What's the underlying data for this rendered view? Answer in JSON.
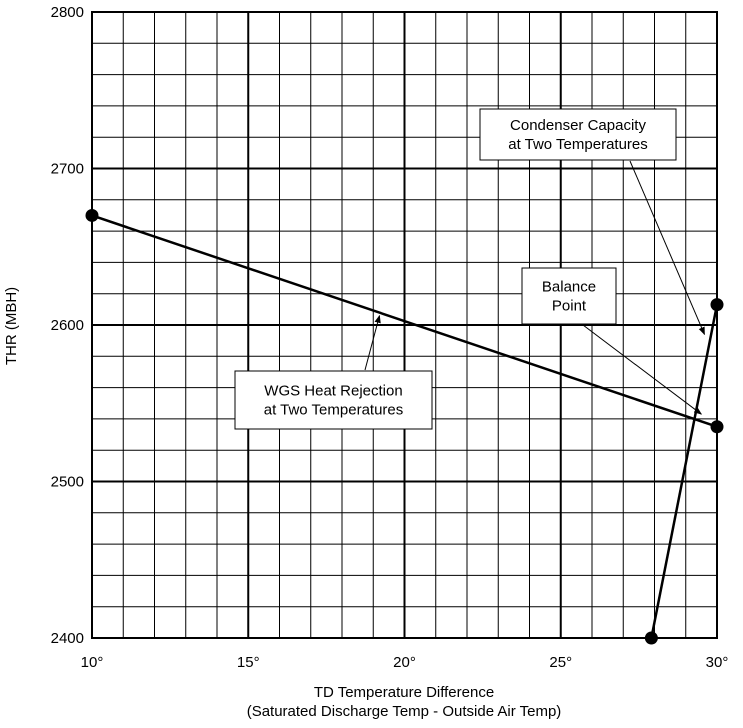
{
  "chart_data": {
    "type": "line",
    "xlabel": "TD   Temperature Difference",
    "xlabel_sub": "(Saturated Discharge Temp - Outside Air Temp)",
    "ylabel": "THR   (MBH)",
    "xlim": [
      10,
      30
    ],
    "ylim": [
      2400,
      2800
    ],
    "grid": true,
    "x_ticks": [
      10,
      15,
      20,
      25,
      30
    ],
    "x_tick_labels": [
      "10°",
      "15°",
      "20°",
      "25°",
      "30°"
    ],
    "y_ticks": [
      2400,
      2500,
      2600,
      2700,
      2800
    ],
    "y_tick_labels": [
      "2400",
      "2500",
      "2600",
      "2700",
      "2800"
    ],
    "series": [
      {
        "points": [
          [
            10,
            2670
          ],
          [
            30,
            2535
          ]
        ],
        "color": "#000000"
      },
      {
        "points": [
          [
            27.9,
            2400
          ],
          [
            30,
            2613
          ]
        ],
        "color": "#000000"
      }
    ],
    "annotations": [
      {
        "lines": [
          "Condenser Capacity",
          "at Two Temperatures"
        ],
        "target": [
          29.6,
          2594
        ]
      },
      {
        "lines": [
          "Balance",
          "Point"
        ],
        "target": [
          29.5,
          2543
        ]
      },
      {
        "lines": [
          "WGS Heat Rejection",
          "at Two Temperatures"
        ],
        "target": [
          19.2,
          2606
        ]
      }
    ]
  }
}
